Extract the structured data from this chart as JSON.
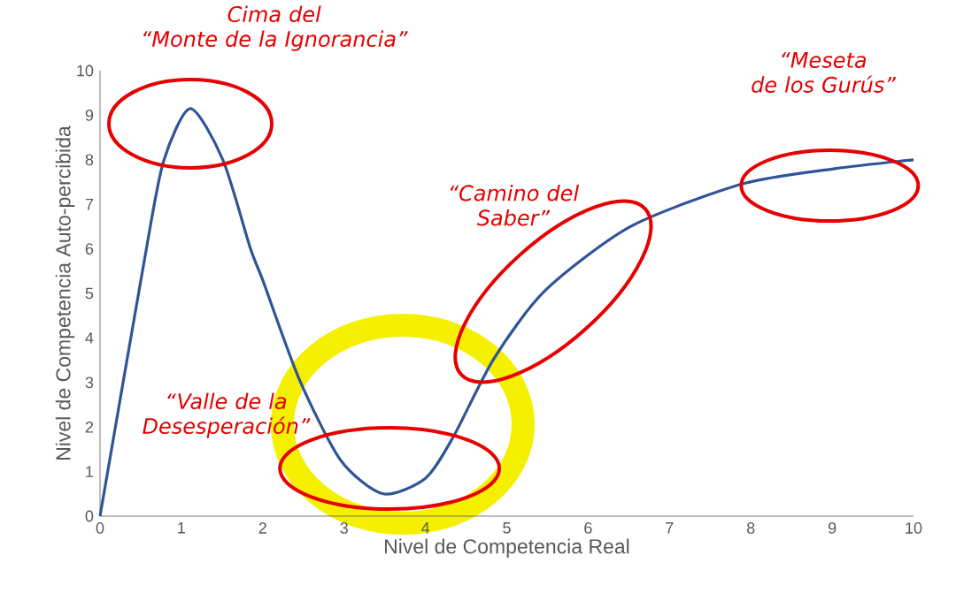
{
  "chart_data": {
    "type": "line",
    "xlabel": "Nivel de Competencia Real",
    "ylabel": "Nivel de Competencia Auto-percibida",
    "x": [
      0,
      0.55,
      0.78,
      1.11,
      1.51,
      1.85,
      2,
      2.45,
      2.96,
      3.48,
      4,
      4.34,
      4.84,
      5.47,
      6.52,
      7.9,
      9.03,
      10
    ],
    "series": [
      {
        "color": "#2f5597",
        "values": [
          0,
          5.8,
          7.96,
          9.15,
          8.0,
          6.0,
          5.3,
          3.07,
          1.25,
          0.5,
          0.85,
          1.77,
          3.53,
          5.06,
          6.5,
          7.46,
          7.8,
          8.0
        ]
      }
    ],
    "xlim": [
      0,
      10
    ],
    "ylim": [
      0,
      10
    ],
    "xticks": [
      0,
      1,
      2,
      3,
      4,
      5,
      6,
      7,
      8,
      9,
      10
    ],
    "yticks": [
      0,
      1,
      2,
      3,
      4,
      5,
      6,
      7,
      8,
      9,
      10
    ],
    "grid": false,
    "marker": "none",
    "line_style": "solid",
    "annotations": [
      "Cima del\n“Monte de la Ignorancia”",
      "“Valle de la\nDesesperación”",
      "“Camino del\nSaber”",
      "“Meseta\nde los Gurús”"
    ]
  }
}
